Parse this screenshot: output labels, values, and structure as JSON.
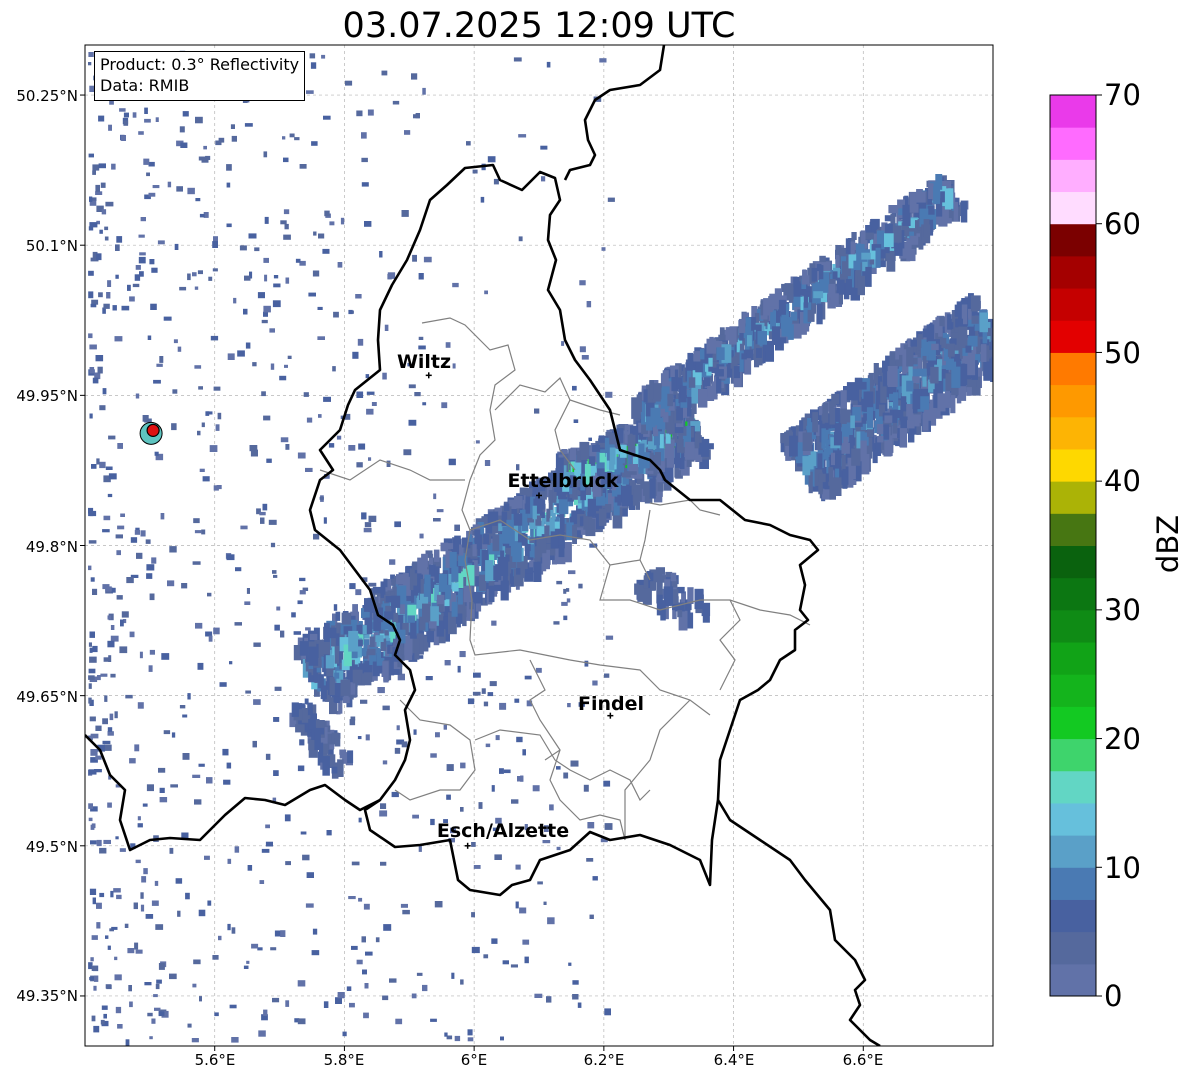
{
  "title": "03.07.2025 12:09 UTC",
  "info": {
    "product": "Product: 0.3° Reflectivity",
    "data": "Data: RMIB"
  },
  "map": {
    "lon_range": [
      5.4,
      6.8
    ],
    "lat_range": [
      49.3,
      50.3
    ],
    "grid": true,
    "lat_ticks": [
      {
        "value": 50.25,
        "label": "50.25°N"
      },
      {
        "value": 50.1,
        "label": "50.1°N"
      },
      {
        "value": 49.95,
        "label": "49.95°N"
      },
      {
        "value": 49.8,
        "label": "49.8°N"
      },
      {
        "value": 49.65,
        "label": "49.65°N"
      },
      {
        "value": 49.5,
        "label": "49.5°N"
      },
      {
        "value": 49.35,
        "label": "49.35°N"
      }
    ],
    "lon_ticks": [
      {
        "value": 5.6,
        "label": "5.6°E"
      },
      {
        "value": 5.8,
        "label": "5.8°E"
      },
      {
        "value": 6.0,
        "label": "6°E"
      },
      {
        "value": 6.2,
        "label": "6.2°E"
      },
      {
        "value": 6.4,
        "label": "6.4°E"
      },
      {
        "value": 6.6,
        "label": "6.6°E"
      }
    ],
    "cities": [
      {
        "name": "Wiltz",
        "lon": 5.93,
        "lat": 49.97
      },
      {
        "name": "Ettelbruck",
        "lon": 6.1,
        "lat": 49.85
      },
      {
        "name": "Findel",
        "lon": 6.21,
        "lat": 49.63
      },
      {
        "name": "Esch/Alzette",
        "lon": 5.99,
        "lat": 49.5
      }
    ],
    "radar_site": {
      "lon": 5.505,
      "lat": 49.915
    },
    "colors": {
      "border": "#000000",
      "admin": "#808080",
      "site": "#dd1111",
      "site_halo": "#5ec4c0"
    }
  },
  "colorbar": {
    "label": "dBZ",
    "min": 0,
    "max": 70,
    "tick_labels": [
      "0",
      "10",
      "20",
      "30",
      "40",
      "50",
      "60",
      "70"
    ],
    "colors": [
      "#6172a8",
      "#55699d",
      "#4861a0",
      "#4a7ab3",
      "#5aa0c8",
      "#66c0dc",
      "#62d6c4",
      "#3ed46c",
      "#13c922",
      "#14b41c",
      "#11a317",
      "#0f8b15",
      "#0c7712",
      "#0a620e",
      "#477612",
      "#abb306",
      "#fed800",
      "#fdb404",
      "#fe9900",
      "#ff7a00",
      "#e30000",
      "#c50000",
      "#a40000",
      "#7b0000",
      "#ffdcff",
      "#ffaeff",
      "#ff6bff",
      "#ea3aea"
    ]
  }
}
